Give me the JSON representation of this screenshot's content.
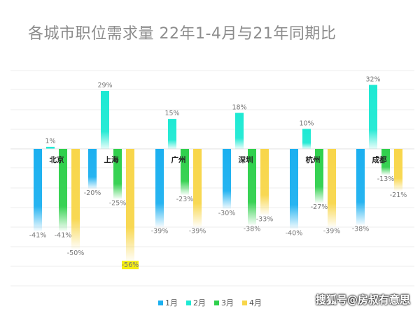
{
  "title": "各城市职位需求量 22年1-4月与21年同期比",
  "watermark": "搜狐号@房叔有意思",
  "colors": {
    "1月": "#1bb0f0",
    "2月": "#1de9d3",
    "3月": "#2fd04c",
    "4月": "#f8d64a",
    "highlight": "#f5ee13"
  },
  "chart_data": {
    "type": "bar",
    "title": "各城市职位需求量 22年1-4月与21年同期比",
    "categories": [
      "北京",
      "上海",
      "广州",
      "深圳",
      "杭州",
      "成都"
    ],
    "series": [
      {
        "name": "1月",
        "values": [
          -41,
          -20,
          -39,
          -30,
          -40,
          -38
        ]
      },
      {
        "name": "2月",
        "values": [
          1,
          29,
          15,
          18,
          10,
          32
        ]
      },
      {
        "name": "3月",
        "values": [
          -41,
          -25,
          -23,
          -38,
          -27,
          -13
        ]
      },
      {
        "name": "4月",
        "values": [
          -50,
          -56,
          -39,
          -33,
          -39,
          -21
        ]
      }
    ],
    "unit": "%",
    "ylim": [
      -70,
      40
    ],
    "grid": true,
    "legend": "bottom",
    "highlighted_label": {
      "series": "4月",
      "category": "上海"
    }
  }
}
